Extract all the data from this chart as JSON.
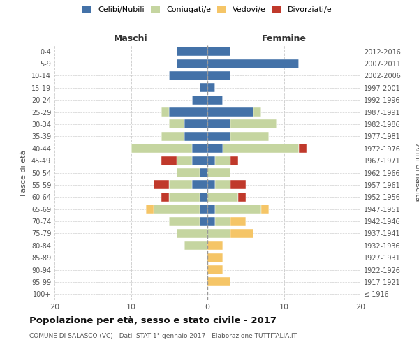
{
  "age_groups": [
    "100+",
    "95-99",
    "90-94",
    "85-89",
    "80-84",
    "75-79",
    "70-74",
    "65-69",
    "60-64",
    "55-59",
    "50-54",
    "45-49",
    "40-44",
    "35-39",
    "30-34",
    "25-29",
    "20-24",
    "15-19",
    "10-14",
    "5-9",
    "0-4"
  ],
  "birth_years": [
    "≤ 1916",
    "1917-1921",
    "1922-1926",
    "1927-1931",
    "1932-1936",
    "1937-1941",
    "1942-1946",
    "1947-1951",
    "1952-1956",
    "1957-1961",
    "1962-1966",
    "1967-1971",
    "1972-1976",
    "1977-1981",
    "1982-1986",
    "1987-1991",
    "1992-1996",
    "1997-2001",
    "2002-2006",
    "2007-2011",
    "2012-2016"
  ],
  "maschi": {
    "celibi": [
      0,
      0,
      0,
      0,
      0,
      0,
      1,
      1,
      1,
      2,
      1,
      2,
      2,
      3,
      3,
      5,
      2,
      1,
      5,
      4,
      4
    ],
    "coniugati": [
      0,
      0,
      0,
      0,
      3,
      4,
      4,
      6,
      4,
      3,
      3,
      2,
      8,
      3,
      2,
      1,
      0,
      0,
      0,
      0,
      0
    ],
    "vedovi": [
      0,
      0,
      0,
      0,
      0,
      0,
      0,
      1,
      0,
      0,
      0,
      0,
      0,
      0,
      0,
      0,
      0,
      0,
      0,
      0,
      0
    ],
    "divorziati": [
      0,
      0,
      0,
      0,
      0,
      0,
      0,
      0,
      1,
      2,
      0,
      2,
      0,
      0,
      0,
      0,
      0,
      0,
      0,
      0,
      0
    ]
  },
  "femmine": {
    "nubili": [
      0,
      0,
      0,
      0,
      0,
      0,
      1,
      1,
      0,
      1,
      0,
      1,
      2,
      3,
      3,
      6,
      2,
      1,
      3,
      12,
      3
    ],
    "coniugate": [
      0,
      0,
      0,
      0,
      0,
      3,
      2,
      6,
      4,
      2,
      3,
      2,
      10,
      5,
      6,
      1,
      0,
      0,
      0,
      0,
      0
    ],
    "vedove": [
      0,
      3,
      2,
      2,
      2,
      3,
      2,
      1,
      0,
      0,
      0,
      0,
      0,
      0,
      0,
      0,
      0,
      0,
      0,
      0,
      0
    ],
    "divorziate": [
      0,
      0,
      0,
      0,
      0,
      0,
      0,
      0,
      1,
      2,
      0,
      1,
      1,
      0,
      0,
      0,
      0,
      0,
      0,
      0,
      0
    ]
  },
  "colors": {
    "celibi": "#4472a8",
    "coniugati": "#c5d5a0",
    "vedovi": "#f5c567",
    "divorziati": "#c0392b"
  },
  "title": "Popolazione per età, sesso e stato civile - 2017",
  "subtitle": "COMUNE DI SALASCO (VC) - Dati ISTAT 1° gennaio 2017 - Elaborazione TUTTITALIA.IT",
  "ylabel_left": "Fasce di età",
  "ylabel_right": "Anni di nascita",
  "xlabel_left": "Maschi",
  "xlabel_right": "Femmine",
  "xlim": 20,
  "background_color": "#ffffff",
  "grid_color": "#cccccc",
  "legend_labels": [
    "Celibi/Nubili",
    "Coniugati/e",
    "Vedovi/e",
    "Divorziati/e"
  ]
}
